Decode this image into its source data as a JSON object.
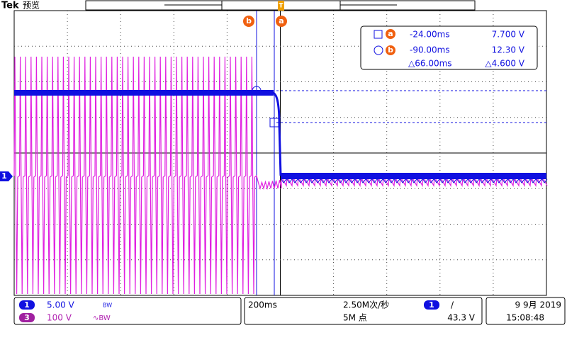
{
  "header": {
    "brand": "Tek",
    "mode": "预览"
  },
  "cursors": {
    "b_tag": "b",
    "a_tag": "a",
    "trigger": "T"
  },
  "readout": {
    "rows": [
      {
        "marker": "a",
        "time": "-24.00ms",
        "volt": "7.700 V"
      },
      {
        "marker": "b",
        "time": "-90.00ms",
        "volt": "12.30 V"
      },
      {
        "time": "△66.00ms",
        "volt": "△4.600 V"
      }
    ]
  },
  "channel_marker": "1",
  "status": {
    "ch1": {
      "num": "1",
      "scale": "5.00 V",
      "bw": "BW"
    },
    "ch3": {
      "num": "3",
      "scale": "100 V",
      "bw": "∿BW"
    },
    "timebase": "200ms",
    "sample_rate": "2.50M次/秒",
    "record": "5M 点",
    "trigger": {
      "source": "1",
      "slope": "/",
      "level": "43.3 V"
    },
    "date": "9 9月 2019",
    "time": "15:08:48"
  }
}
